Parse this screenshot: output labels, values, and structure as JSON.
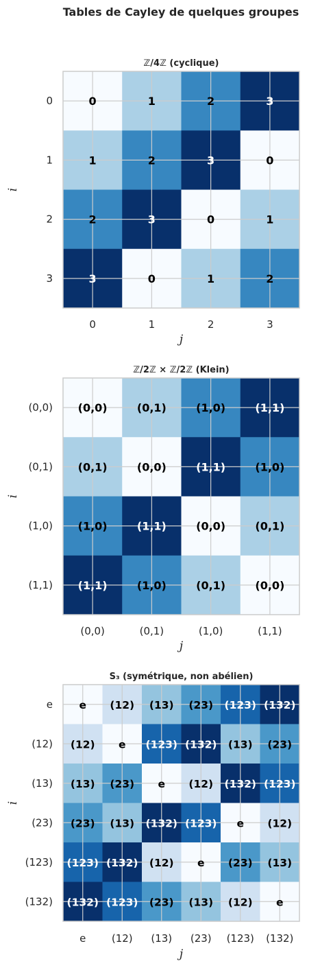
{
  "figure": {
    "title": "Tables de Cayley de quelques groupes",
    "colormap": [
      "#f7fbff",
      "#deebf7",
      "#c6dbef",
      "#9ecae1",
      "#6baed6",
      "#4292c6",
      "#2171b5",
      "#08519c",
      "#08306b"
    ],
    "dark_text_color": "#000000",
    "light_text_color": "#ffffff",
    "grid_color": "#cccccc"
  },
  "chart_data": [
    {
      "type": "heatmap",
      "title": "ℤ/4ℤ (cyclique)",
      "xlabel": "j",
      "ylabel": "i",
      "x_tick_labels": [
        "0",
        "1",
        "2",
        "3"
      ],
      "y_tick_labels": [
        "0",
        "1",
        "2",
        "3"
      ],
      "values": [
        [
          0,
          1,
          2,
          3
        ],
        [
          1,
          2,
          3,
          0
        ],
        [
          2,
          3,
          0,
          1
        ],
        [
          3,
          0,
          1,
          2
        ]
      ],
      "cell_labels": [
        [
          "0",
          "1",
          "2",
          "3"
        ],
        [
          "1",
          "2",
          "3",
          "0"
        ],
        [
          "2",
          "3",
          "0",
          "1"
        ],
        [
          "3",
          "0",
          "1",
          "2"
        ]
      ],
      "color_range": [
        0,
        3
      ],
      "grid": true
    },
    {
      "type": "heatmap",
      "title": "ℤ/2ℤ × ℤ/2ℤ (Klein)",
      "xlabel": "j",
      "ylabel": "i",
      "x_tick_labels": [
        "(0,0)",
        "(0,1)",
        "(1,0)",
        "(1,1)"
      ],
      "y_tick_labels": [
        "(0,0)",
        "(0,1)",
        "(1,0)",
        "(1,1)"
      ],
      "values": [
        [
          0,
          1,
          2,
          3
        ],
        [
          1,
          0,
          3,
          2
        ],
        [
          2,
          3,
          0,
          1
        ],
        [
          3,
          2,
          1,
          0
        ]
      ],
      "cell_labels": [
        [
          "(0,0)",
          "(0,1)",
          "(1,0)",
          "(1,1)"
        ],
        [
          "(0,1)",
          "(0,0)",
          "(1,1)",
          "(1,0)"
        ],
        [
          "(1,0)",
          "(1,1)",
          "(0,0)",
          "(0,1)"
        ],
        [
          "(1,1)",
          "(1,0)",
          "(0,1)",
          "(0,0)"
        ]
      ],
      "color_range": [
        0,
        3
      ],
      "grid": true
    },
    {
      "type": "heatmap",
      "title": "S₃ (symétrique, non abélien)",
      "xlabel": "j",
      "ylabel": "i",
      "x_tick_labels": [
        "e",
        "(12)",
        "(13)",
        "(23)",
        "(123)",
        "(132)"
      ],
      "y_tick_labels": [
        "e",
        "(12)",
        "(13)",
        "(23)",
        "(123)",
        "(132)"
      ],
      "values": [
        [
          0,
          1,
          2,
          3,
          4,
          5
        ],
        [
          1,
          0,
          4,
          5,
          2,
          3
        ],
        [
          2,
          3,
          0,
          1,
          5,
          4
        ],
        [
          3,
          2,
          5,
          4,
          0,
          1
        ],
        [
          4,
          5,
          1,
          0,
          3,
          2
        ],
        [
          5,
          4,
          3,
          2,
          1,
          0
        ]
      ],
      "cell_labels": [
        [
          "e",
          "(12)",
          "(13)",
          "(23)",
          "(123)",
          "(132)"
        ],
        [
          "(12)",
          "e",
          "(123)",
          "(132)",
          "(13)",
          "(23)"
        ],
        [
          "(13)",
          "(23)",
          "e",
          "(12)",
          "(132)",
          "(123)"
        ],
        [
          "(23)",
          "(13)",
          "(132)",
          "(123)",
          "e",
          "(12)"
        ],
        [
          "(123)",
          "(132)",
          "(12)",
          "e",
          "(23)",
          "(13)"
        ],
        [
          "(132)",
          "(123)",
          "(23)",
          "(13)",
          "(12)",
          "e"
        ]
      ],
      "color_range": [
        0,
        5
      ],
      "grid": true
    }
  ]
}
